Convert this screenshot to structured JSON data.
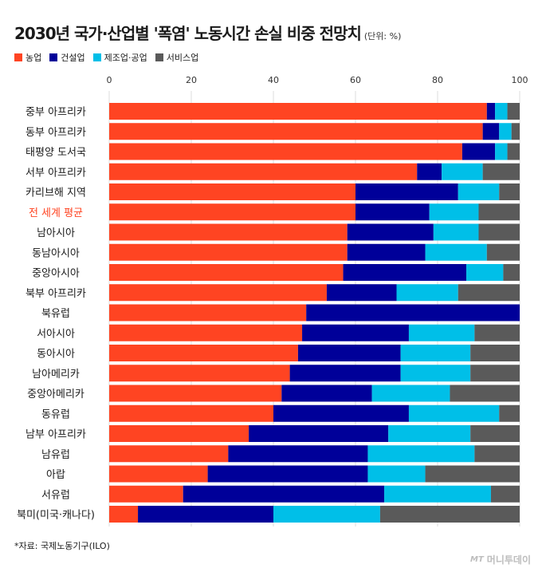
{
  "header": {
    "title": "2030년 국가·산업별 '폭염' 노동시간 손실 비중 전망치",
    "unit": "(단위: %)"
  },
  "footer": {
    "source": "*자료: 국제노동기구(ILO)",
    "brand": "머니투데이",
    "brand_mark": "MT"
  },
  "colors": {
    "agriculture": "#ff4422",
    "construction": "#000099",
    "manufacturing": "#00bfe8",
    "services": "#5a5a5a",
    "highlight_text": "#ff4422",
    "grid": "#dcdcdc"
  },
  "chart_data": {
    "type": "bar",
    "orientation": "horizontal",
    "stacked": true,
    "xlim": [
      0,
      100
    ],
    "x_ticks": [
      "0",
      "20",
      "40",
      "60",
      "80",
      "100"
    ],
    "grid": true,
    "legend_position": "top-left",
    "highlight_category": "전 세계 평균",
    "categories": [
      "중부 아프리카",
      "동부 아프리카",
      "태평양 도서국",
      "서부 아프리카",
      "카리브해 지역",
      "전 세계 평균",
      "남아시아",
      "동남아시아",
      "중앙아시아",
      "북부 아프리카",
      "북유럽",
      "서아시아",
      "동아시아",
      "남아메리카",
      "중앙아메리카",
      "동유럽",
      "남부 아프리카",
      "남유럽",
      "아랍",
      "서유럽",
      "북미(미국·캐나다)"
    ],
    "series": [
      {
        "name": "농업",
        "color": "#ff4422",
        "values": [
          92,
          91,
          86,
          75,
          60,
          60,
          58,
          58,
          57,
          53,
          48,
          47,
          46,
          44,
          42,
          40,
          34,
          29,
          24,
          18,
          7
        ]
      },
      {
        "name": "건설업",
        "color": "#000099",
        "values": [
          2,
          4,
          8,
          6,
          25,
          18,
          21,
          19,
          30,
          17,
          52,
          26,
          25,
          27,
          22,
          33,
          34,
          34,
          39,
          49,
          33
        ]
      },
      {
        "name": "제조업·공업",
        "color": "#00bfe8",
        "values": [
          3,
          3,
          3,
          10,
          10,
          12,
          11,
          15,
          9,
          15,
          0,
          16,
          17,
          17,
          19,
          22,
          20,
          26,
          14,
          26,
          26
        ]
      },
      {
        "name": "서비스업",
        "color": "#5a5a5a",
        "values": [
          3,
          2,
          3,
          9,
          5,
          10,
          10,
          8,
          4,
          15,
          0,
          11,
          12,
          12,
          17,
          5,
          12,
          11,
          23,
          7,
          34
        ]
      }
    ]
  }
}
